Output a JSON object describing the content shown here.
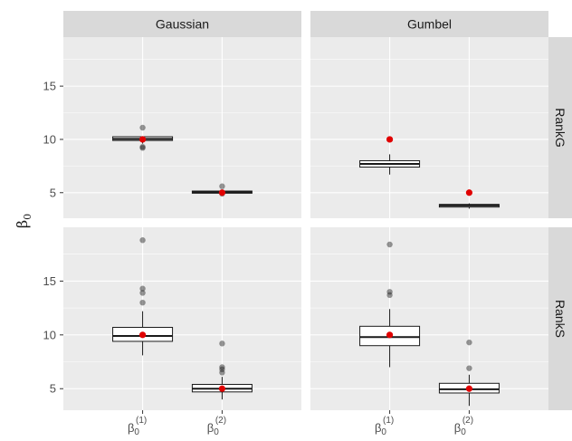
{
  "chart_data": {
    "type": "box",
    "ylabel": "β0",
    "ylabel_main": "β",
    "ylabel_sub": "0",
    "facet_cols": [
      "Gaussian",
      "Gumbel"
    ],
    "facet_rows": [
      "RankG",
      "RankS"
    ],
    "categories": [
      {
        "base": "β",
        "sub": "0",
        "sup": "(1)"
      },
      {
        "base": "β",
        "sub": "0",
        "sup": "(2)"
      }
    ],
    "y_ticks": [
      5,
      10,
      15
    ],
    "ylim_row": [
      [
        2.6,
        19.6
      ],
      [
        3.0,
        20.0
      ]
    ],
    "panels": [
      {
        "row": "RankG",
        "col": "Gaussian",
        "boxes": [
          {
            "category": 0,
            "q1": 9.9,
            "median": 10.05,
            "q3": 10.25,
            "whisker_low": 9.6,
            "whisker_high": 10.3,
            "outliers": [
              11.1,
              9.2,
              9.3
            ],
            "truth": 10
          },
          {
            "category": 1,
            "q1": 4.95,
            "median": 5.05,
            "q3": 5.15,
            "whisker_low": 4.9,
            "whisker_high": 5.2,
            "outliers": [
              5.6,
              4.9
            ],
            "truth": 5
          }
        ]
      },
      {
        "row": "RankG",
        "col": "Gumbel",
        "boxes": [
          {
            "category": 0,
            "q1": 7.4,
            "median": 7.7,
            "q3": 8.0,
            "whisker_low": 6.7,
            "whisker_high": 8.6,
            "outliers": [],
            "truth": 10
          },
          {
            "category": 1,
            "q1": 3.65,
            "median": 3.8,
            "q3": 3.9,
            "whisker_low": 3.5,
            "whisker_high": 4.0,
            "outliers": [],
            "truth": 5
          }
        ]
      },
      {
        "row": "RankS",
        "col": "Gaussian",
        "boxes": [
          {
            "category": 0,
            "q1": 9.4,
            "median": 9.9,
            "q3": 10.7,
            "whisker_low": 8.1,
            "whisker_high": 12.2,
            "outliers": [
              18.8,
              14.3,
              13.9,
              13.0
            ],
            "truth": 10
          },
          {
            "category": 1,
            "q1": 4.7,
            "median": 5.0,
            "q3": 5.4,
            "whisker_low": 4.0,
            "whisker_high": 6.1,
            "outliers": [
              9.2,
              7.0,
              6.8,
              6.5
            ],
            "truth": 5
          }
        ]
      },
      {
        "row": "RankS",
        "col": "Gumbel",
        "boxes": [
          {
            "category": 0,
            "q1": 9.0,
            "median": 9.8,
            "q3": 10.8,
            "whisker_low": 7.0,
            "whisker_high": 12.4,
            "outliers": [
              18.4,
              14.0,
              13.7
            ],
            "truth": 10
          },
          {
            "category": 1,
            "q1": 4.6,
            "median": 4.95,
            "q3": 5.5,
            "whisker_low": 3.4,
            "whisker_high": 6.3,
            "outliers": [
              9.3,
              6.9
            ],
            "truth": 5
          }
        ]
      }
    ],
    "colors": {
      "truth": "#e00000",
      "outlier": "#1a1a1a",
      "panel_bg": "#ebebeb",
      "strip_bg": "#d9d9d9"
    }
  }
}
